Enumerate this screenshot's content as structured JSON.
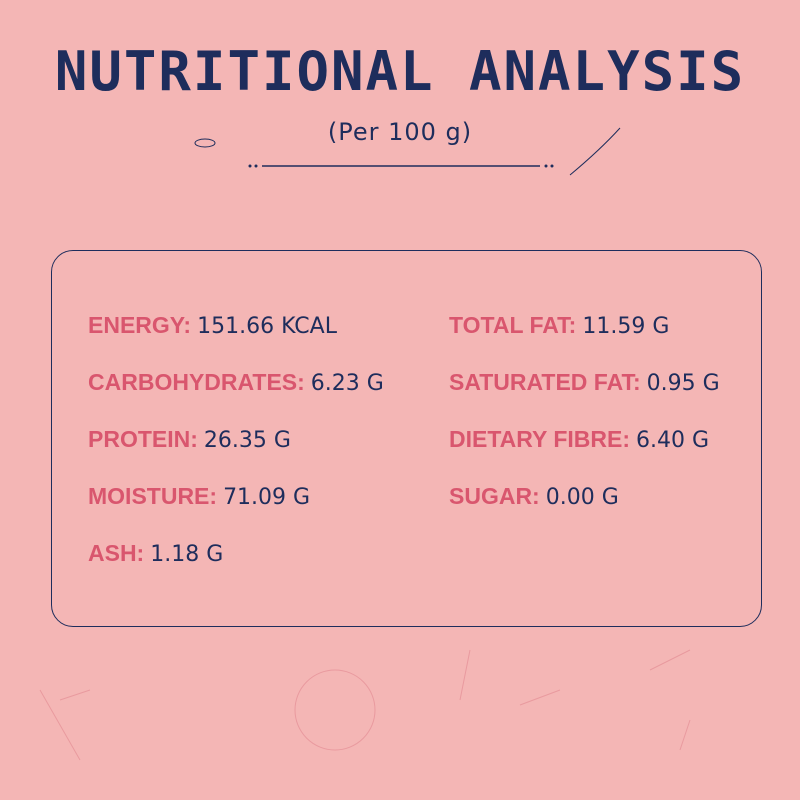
{
  "header": {
    "title": "NUTRITIONAL ANALYSIS",
    "subtitle": "(Per 100 g)"
  },
  "nutrients": {
    "left": [
      {
        "label": "ENERGY:",
        "value": "151.66 KCAL"
      },
      {
        "label": "CARBOHYDRATES:",
        "value": "6.23 G"
      },
      {
        "label": "PROTEIN:",
        "value": "26.35 G"
      },
      {
        "label": "MOISTURE:",
        "value": "71.09 G"
      },
      {
        "label": "ASH:",
        "value": "1.18 G"
      }
    ],
    "right": [
      {
        "label": "TOTAL FAT:",
        "value": "11.59 G"
      },
      {
        "label": "SATURATED FAT:",
        "value": "0.95 G"
      },
      {
        "label": "DIETARY FIBRE:",
        "value": "6.40 G"
      },
      {
        "label": "SUGAR:",
        "value": "0.00 G"
      }
    ]
  }
}
